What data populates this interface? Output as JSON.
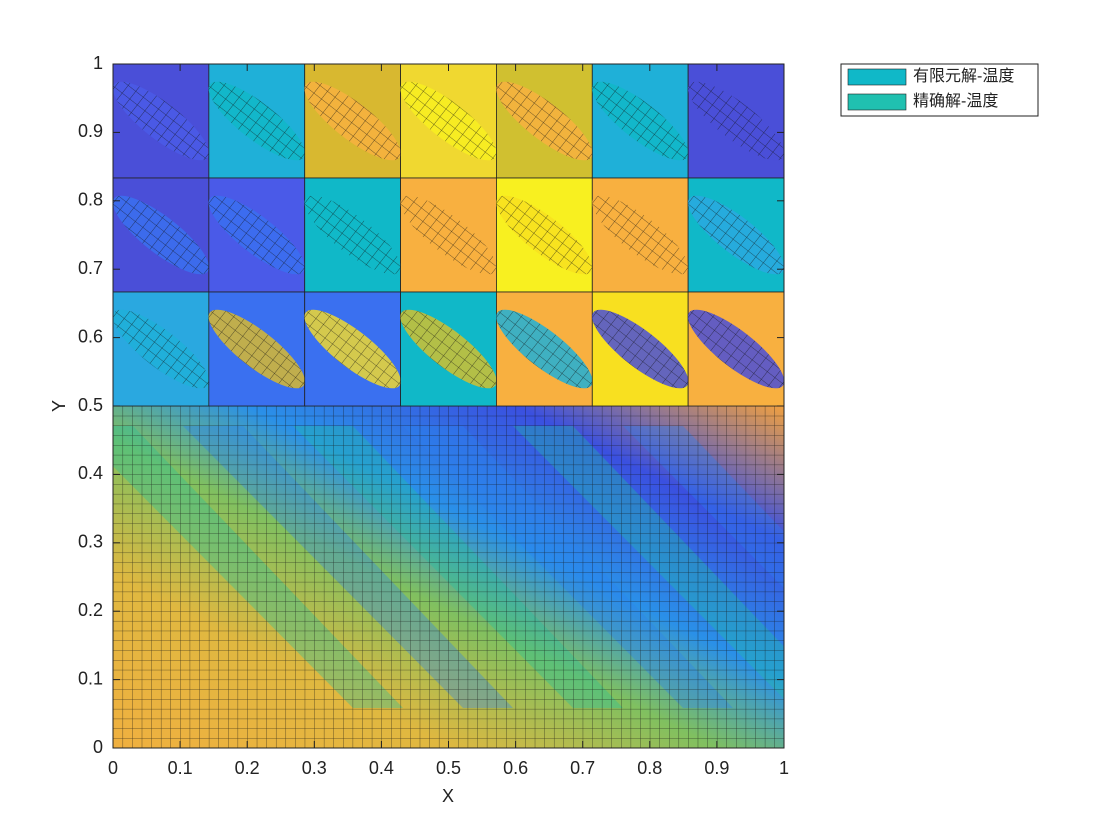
{
  "chart_data": {
    "type": "patch",
    "xlabel": "X",
    "ylabel": "Y",
    "xlim": [
      0,
      1
    ],
    "ylim": [
      0,
      1
    ],
    "xticks": [
      0,
      0.1,
      0.2,
      0.3,
      0.4,
      0.5,
      0.6,
      0.7,
      0.8,
      0.9,
      1
    ],
    "yticks": [
      0,
      0.1,
      0.2,
      0.3,
      0.4,
      0.5,
      0.6,
      0.7,
      0.8,
      0.9,
      1
    ],
    "cell_colors": [
      [
        "#4a4fd8",
        "#1fb0d8",
        "#d8b830",
        "#f0d830",
        "#d0c030",
        "#1fb0d8",
        "#4a4fd8"
      ],
      [
        "#4a4fd8",
        "#4a5ae8",
        "#10b8c8",
        "#f8b040",
        "#f8f020",
        "#f8b040",
        "#10b8c8"
      ],
      [
        "#2aa8e0",
        "#3a70f0",
        "#3a70f0",
        "#10b8c8",
        "#f8b040",
        "#f8e020",
        "#f8b040"
      ]
    ],
    "series": [
      {
        "name": "有限元解-温度",
        "color": "#10b8c8"
      },
      {
        "name": "精确解-温度",
        "color": "#20c0b0"
      }
    ]
  }
}
